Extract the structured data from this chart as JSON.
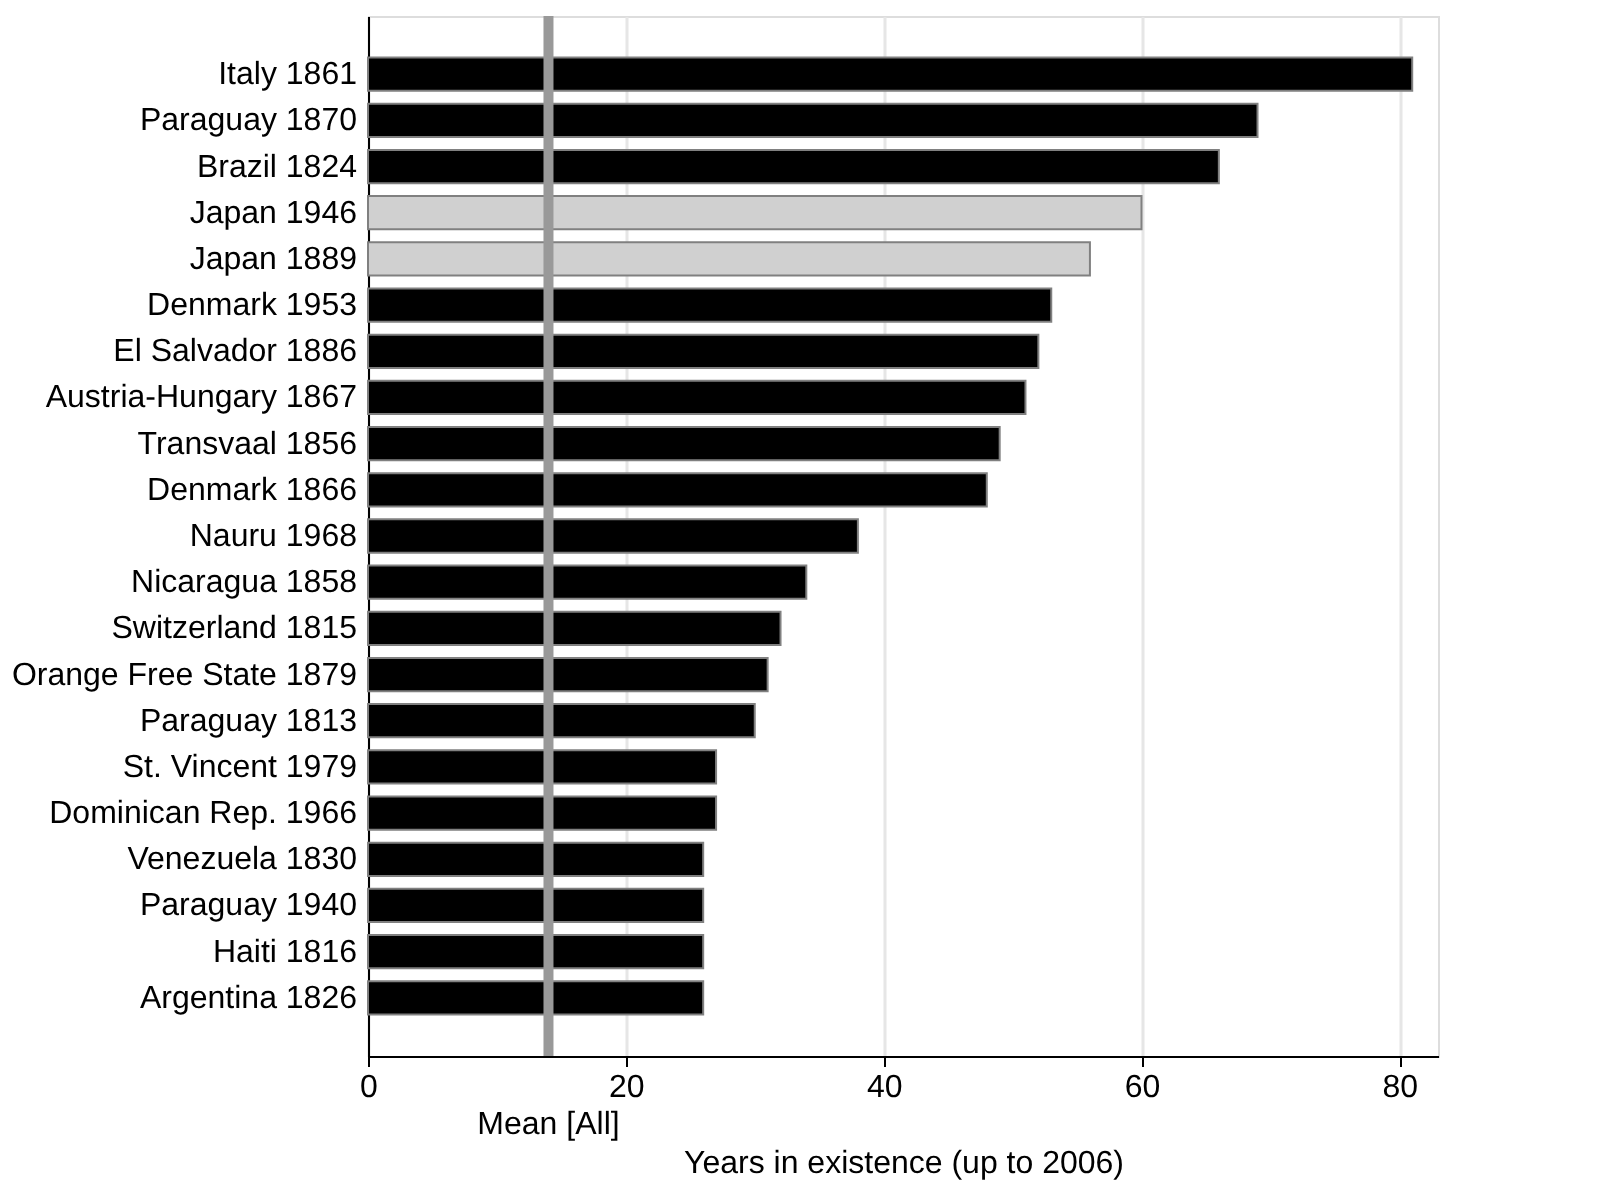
{
  "chart_data": {
    "type": "bar",
    "orientation": "horizontal",
    "xlabel": "Years in existence (up to 2006)",
    "categories": [
      "Italy 1861",
      "Paraguay 1870",
      "Brazil 1824",
      "Japan 1946",
      "Japan 1889",
      "Denmark 1953",
      "El Salvador 1886",
      "Austria-Hungary 1867",
      "Transvaal 1856",
      "Denmark 1866",
      "Nauru 1968",
      "Nicaragua 1858",
      "Switzerland 1815",
      "Orange Free State 1879",
      "Paraguay 1813",
      "St. Vincent 1979",
      "Dominican Rep. 1966",
      "Venezuela 1830",
      "Paraguay 1940",
      "Haiti 1816",
      "Argentina 1826"
    ],
    "values": [
      81,
      69,
      66,
      60,
      56,
      53,
      52,
      51,
      49,
      48,
      38,
      34,
      32,
      31,
      30,
      27,
      27,
      26,
      26,
      26,
      26
    ],
    "colors": [
      "#000000",
      "#000000",
      "#000000",
      "#d0d0d0",
      "#d0d0d0",
      "#000000",
      "#000000",
      "#000000",
      "#000000",
      "#000000",
      "#000000",
      "#000000",
      "#000000",
      "#000000",
      "#000000",
      "#000000",
      "#000000",
      "#000000",
      "#000000",
      "#000000",
      "#000000"
    ],
    "xlim": [
      0,
      83
    ],
    "xticks": [
      0,
      20,
      40,
      60,
      80
    ],
    "grid": "x",
    "ref_lines": [
      {
        "axis": "x",
        "value": 14,
        "label": "Mean [All]",
        "color": "#999999"
      }
    ]
  }
}
